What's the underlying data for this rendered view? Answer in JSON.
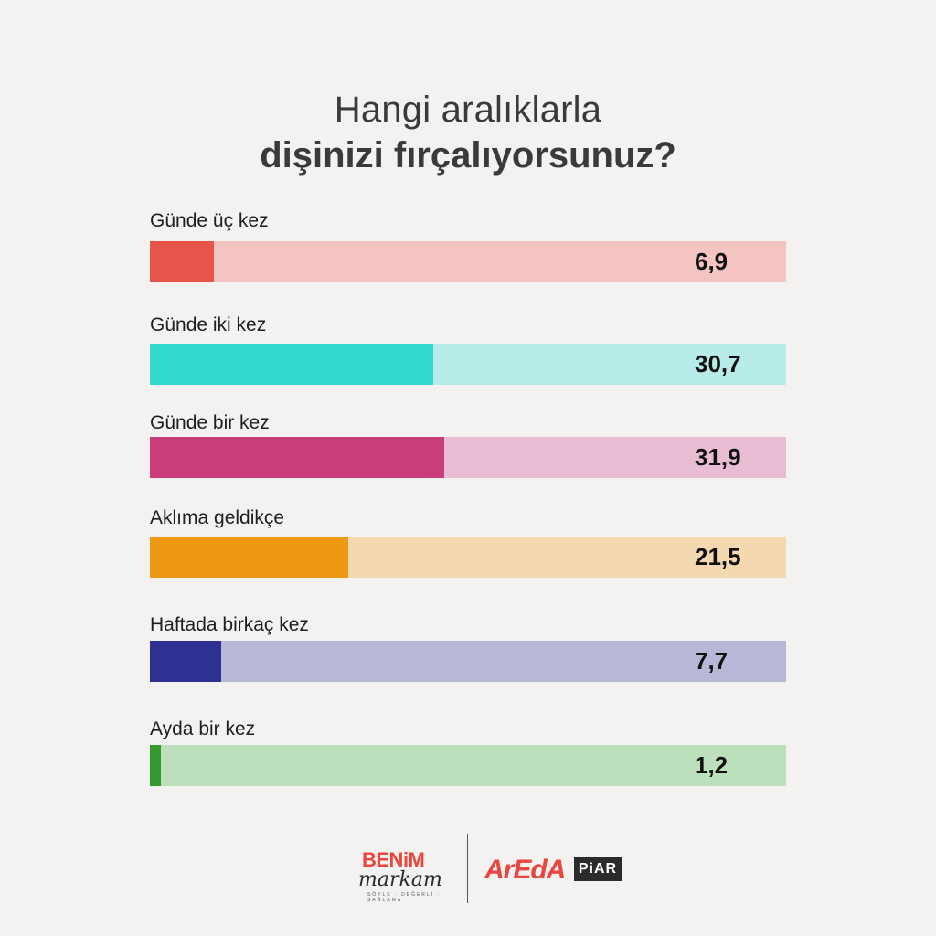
{
  "title_line1": "Hangi aralıklarla",
  "title_line2": "dişinizi fırçalıyorsunuz?",
  "chart_data": {
    "type": "bar",
    "orientation": "horizontal",
    "title": "Hangi aralıklarla dişinizi fırçalıyorsunuz?",
    "categories": [
      "Günde üç kez",
      "Günde iki kez",
      "Günde bir kez",
      "Aklıma geldikçe",
      "Haftada birkaç kez",
      "Ayda bir kez"
    ],
    "values": [
      6.9,
      30.7,
      31.9,
      21.5,
      7.7,
      1.2
    ],
    "value_labels": [
      "6,9",
      "30,7",
      "31,9",
      "21,5",
      "7,7",
      "1,2"
    ],
    "xlim": [
      0,
      69
    ],
    "grid": false,
    "legend": "none",
    "colors": [
      "#e8534a",
      "#34dad0",
      "#ca3d7a",
      "#ee9913",
      "#2e3192",
      "#359a2d"
    ],
    "track_colors": [
      "#f3c4c2",
      "#b8ece8",
      "#e8bcd3",
      "#f4d8b0",
      "#b7b8d8",
      "#bde0bc"
    ]
  },
  "footer": {
    "logo1_top": "BENiM",
    "logo1_bottom": "markam",
    "logo1_tagline": "SÖYLE · DEĞERLİ · SAĞLAMA",
    "logo2_main": "ArEdA",
    "logo2_box": "PiAR"
  }
}
